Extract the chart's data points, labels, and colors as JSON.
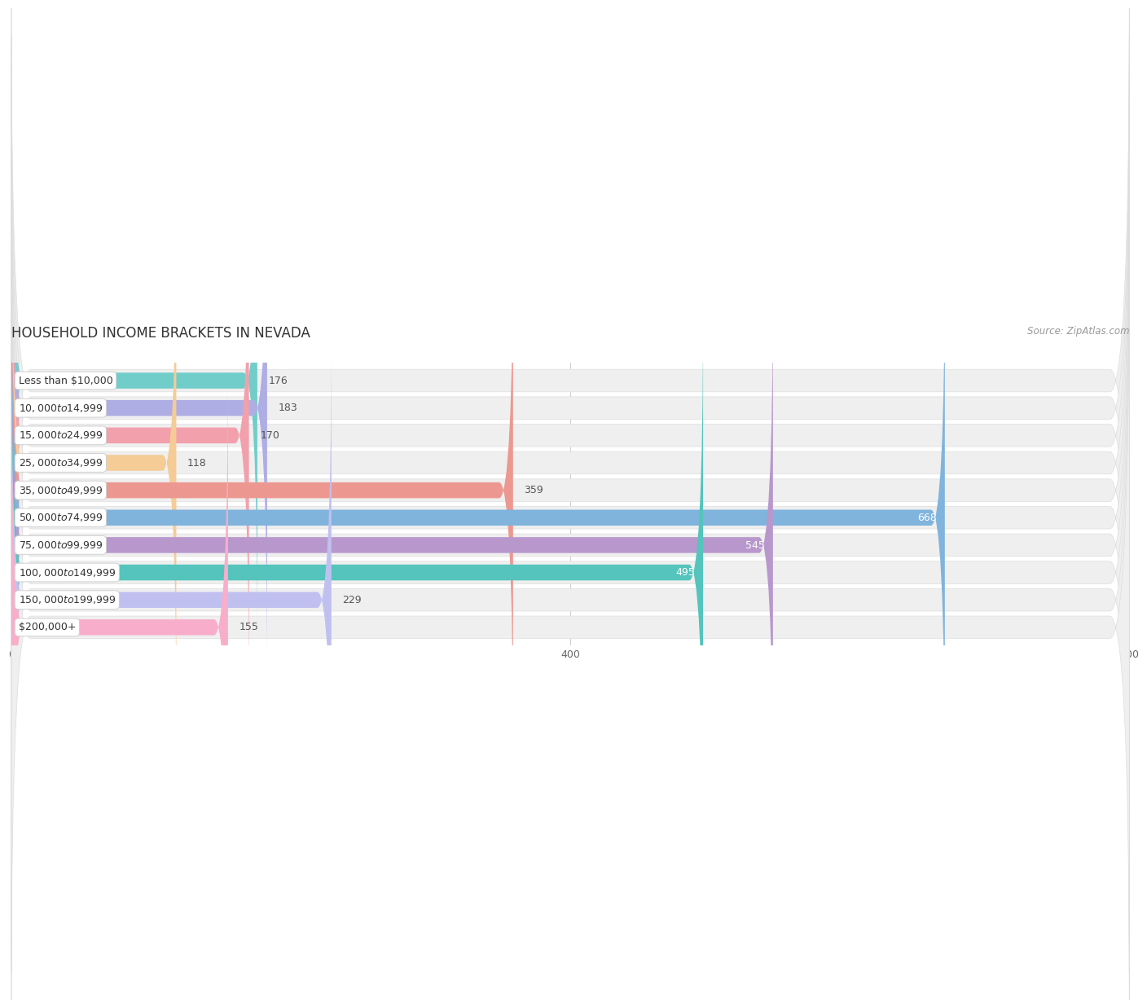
{
  "title": "HOUSEHOLD INCOME BRACKETS IN NEVADA",
  "source": "Source: ZipAtlas.com",
  "categories": [
    "Less than $10,000",
    "$10,000 to $14,999",
    "$15,000 to $24,999",
    "$25,000 to $34,999",
    "$35,000 to $49,999",
    "$50,000 to $74,999",
    "$75,000 to $99,999",
    "$100,000 to $149,999",
    "$150,000 to $199,999",
    "$200,000+"
  ],
  "values": [
    176,
    183,
    170,
    118,
    359,
    668,
    545,
    495,
    229,
    155
  ],
  "bar_colors": [
    "#70CDCA",
    "#AEAEE4",
    "#F2A0AC",
    "#F5CB96",
    "#EC9890",
    "#80B4DC",
    "#B898CC",
    "#54C4BC",
    "#C0C0F0",
    "#F8AECA"
  ],
  "xlim": [
    0,
    800
  ],
  "xticks": [
    0,
    400,
    800
  ],
  "background_color": "#ffffff",
  "row_bg_color": "#efefef",
  "title_fontsize": 12,
  "source_fontsize": 8.5,
  "label_fontsize": 9,
  "value_fontsize": 9,
  "bar_height": 0.58,
  "threshold_inside": 450
}
